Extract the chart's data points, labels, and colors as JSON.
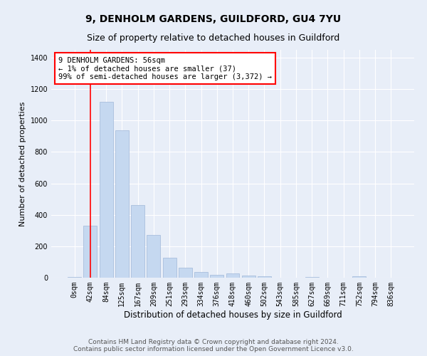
{
  "title1": "9, DENHOLM GARDENS, GUILDFORD, GU4 7YU",
  "title2": "Size of property relative to detached houses in Guildford",
  "xlabel": "Distribution of detached houses by size in Guildford",
  "ylabel": "Number of detached properties",
  "bar_labels": [
    "0sqm",
    "42sqm",
    "84sqm",
    "125sqm",
    "167sqm",
    "209sqm",
    "251sqm",
    "293sqm",
    "334sqm",
    "376sqm",
    "418sqm",
    "460sqm",
    "502sqm",
    "543sqm",
    "585sqm",
    "627sqm",
    "669sqm",
    "711sqm",
    "752sqm",
    "794sqm",
    "836sqm"
  ],
  "bar_values": [
    5,
    330,
    1120,
    940,
    460,
    270,
    125,
    65,
    35,
    20,
    25,
    15,
    10,
    0,
    0,
    5,
    0,
    0,
    10,
    0,
    0
  ],
  "bar_color": "#c5d8f0",
  "bar_edge_color": "#a0b8d8",
  "vline_x": 1.0,
  "annotation_text": "9 DENHOLM GARDENS: 56sqm\n← 1% of detached houses are smaller (37)\n99% of semi-detached houses are larger (3,372) →",
  "annotation_box_color": "white",
  "annotation_edge_color": "red",
  "vline_color": "red",
  "ylim": [
    0,
    1450
  ],
  "yticks": [
    0,
    200,
    400,
    600,
    800,
    1000,
    1200,
    1400
  ],
  "bg_color": "#e8eef8",
  "plot_bg_color": "#e8eef8",
  "footer1": "Contains HM Land Registry data © Crown copyright and database right 2024.",
  "footer2": "Contains public sector information licensed under the Open Government Licence v3.0.",
  "title1_fontsize": 10,
  "title2_fontsize": 9,
  "xlabel_fontsize": 8.5,
  "ylabel_fontsize": 8,
  "tick_fontsize": 7,
  "footer_fontsize": 6.5,
  "annotation_fontsize": 7.5
}
